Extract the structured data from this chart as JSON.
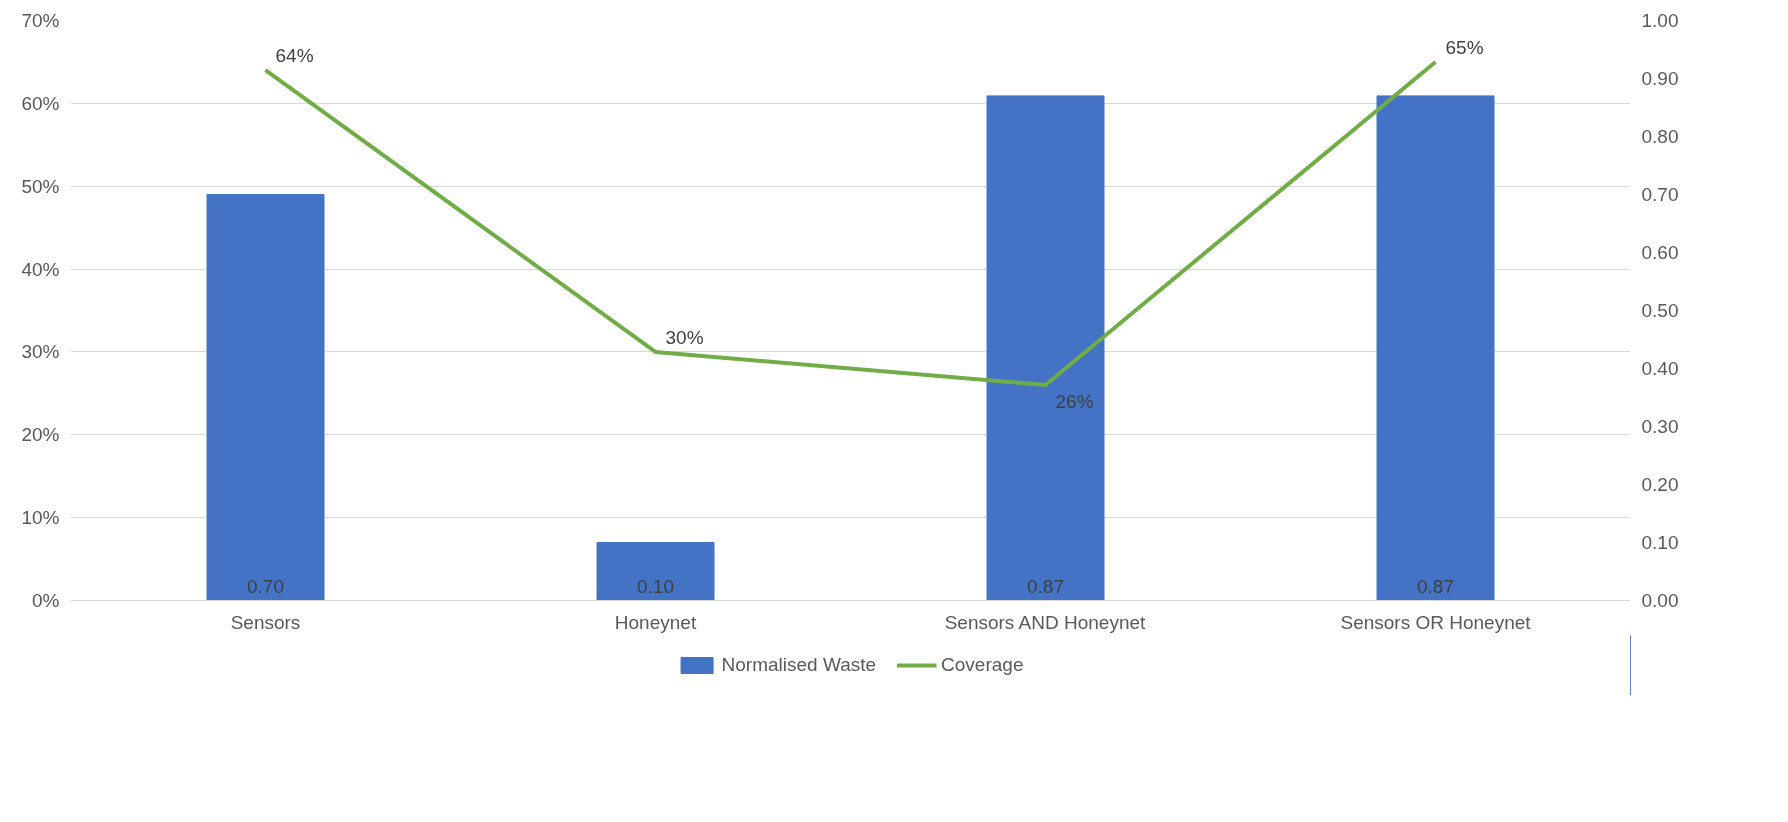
{
  "chart_data": {
    "type": "bar",
    "categories": [
      "Sensors",
      "Honeynet",
      "Sensors AND Honeynet",
      "Sensors OR Honeynet"
    ],
    "series": [
      {
        "name": "Normalised Waste",
        "axis": "y2",
        "color": "#4472c4",
        "values": [
          0.7,
          0.1,
          0.87,
          0.87
        ],
        "value_labels": [
          "0.70",
          "0.10",
          "0.87",
          "0.87"
        ]
      },
      {
        "name": "Coverage",
        "type": "line",
        "color": "#70ad47",
        "values": [
          64,
          30,
          26,
          65
        ],
        "value_labels": [
          "64%",
          "30%",
          "26%",
          "65%"
        ]
      }
    ],
    "ylim": [
      0,
      70
    ],
    "yticks": [
      {
        "value": 0,
        "label": "0%"
      },
      {
        "value": 10,
        "label": "10%"
      },
      {
        "value": 20,
        "label": "20%"
      },
      {
        "value": 30,
        "label": "30%"
      },
      {
        "value": 40,
        "label": "40%"
      },
      {
        "value": 50,
        "label": "50%"
      },
      {
        "value": 60,
        "label": "60%"
      },
      {
        "value": 70,
        "label": "70%"
      }
    ],
    "y2lim": [
      0,
      1.0
    ],
    "y2ticks": [
      {
        "value": 0,
        "label": "0.00"
      },
      {
        "value": 0.1,
        "label": "0.10"
      },
      {
        "value": 0.2,
        "label": "0.20"
      },
      {
        "value": 0.3,
        "label": "0.30"
      },
      {
        "value": 0.4,
        "label": "0.40"
      },
      {
        "value": 0.5,
        "label": "0.50"
      },
      {
        "value": 0.6,
        "label": "0.60"
      },
      {
        "value": 0.7,
        "label": "0.70"
      },
      {
        "value": 0.8,
        "label": "0.80"
      },
      {
        "value": 0.9,
        "label": "0.90"
      },
      {
        "value": 1.0,
        "label": "1.00"
      }
    ],
    "grid": "y",
    "legend": "bottom",
    "line_style": "solid",
    "marker": "none"
  }
}
